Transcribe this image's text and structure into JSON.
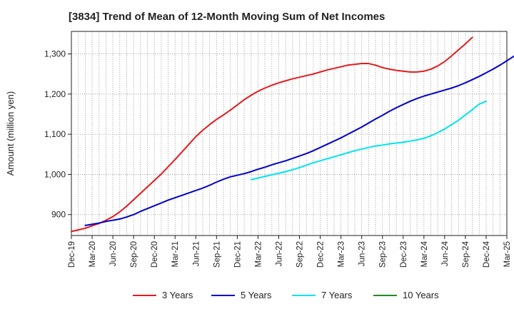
{
  "title": "[3834]  Trend of Mean of 12-Month Moving Sum of Net Incomes",
  "chart_data": {
    "type": "line",
    "title": "[3834]  Trend of Mean of 12-Month Moving Sum of Net Incomes",
    "ylabel": "Amount (million yen)",
    "xlabel": "",
    "ylim": [
      848,
      1356
    ],
    "yticks": [
      900,
      1000,
      1100,
      1200,
      1300
    ],
    "ytick_labels": [
      "900",
      "1,000",
      "1,100",
      "1,200",
      "1,300"
    ],
    "x_start": "Dec-19",
    "x_end": "Mar-25",
    "xtick_labels": [
      "Dec-19",
      "Mar-20",
      "Jun-20",
      "Sep-20",
      "Dec-20",
      "Mar-21",
      "Jun-21",
      "Sep-21",
      "Dec-21",
      "Mar-22",
      "Jun-22",
      "Sep-22",
      "Dec-22",
      "Mar-23",
      "Jun-23",
      "Sep-23",
      "Dec-23",
      "Mar-24",
      "Jun-24",
      "Sep-24",
      "Dec-24",
      "Mar-25"
    ],
    "grid": true,
    "legend_position": "bottom",
    "series": [
      {
        "name": "3 Years",
        "color": "#e41a1c",
        "start": "Dec-19",
        "values": [
          858,
          862,
          866,
          872,
          878,
          886,
          895,
          907,
          921,
          937,
          953,
          969,
          985,
          1001,
          1019,
          1037,
          1056,
          1075,
          1094,
          1110,
          1124,
          1137,
          1148,
          1160,
          1173,
          1186,
          1197,
          1207,
          1215,
          1222,
          1228,
          1233,
          1238,
          1242,
          1246,
          1250,
          1255,
          1260,
          1264,
          1268,
          1272,
          1274,
          1276,
          1276,
          1272,
          1266,
          1262,
          1259,
          1257,
          1255,
          1255,
          1257,
          1262,
          1270,
          1281,
          1295,
          1310,
          1325,
          1341
        ]
      },
      {
        "name": "5 Years",
        "color": "#0000cc",
        "start": "Feb-20",
        "values": [
          873,
          876,
          879,
          883,
          886,
          889,
          894,
          900,
          908,
          915,
          922,
          929,
          936,
          942,
          948,
          954,
          960,
          966,
          973,
          981,
          988,
          994,
          998,
          1002,
          1007,
          1013,
          1018,
          1024,
          1029,
          1034,
          1040,
          1046,
          1052,
          1059,
          1067,
          1075,
          1083,
          1091,
          1100,
          1109,
          1118,
          1128,
          1138,
          1147,
          1157,
          1166,
          1174,
          1182,
          1189,
          1195,
          1200,
          1205,
          1210,
          1215,
          1221,
          1228,
          1236,
          1244,
          1253,
          1262,
          1272,
          1283,
          1294,
          1306
        ]
      },
      {
        "name": "7 Years",
        "color": "#00e5ee",
        "start": "Feb-22",
        "values": [
          987,
          991,
          995,
          999,
          1003,
          1007,
          1012,
          1017,
          1023,
          1029,
          1034,
          1039,
          1044,
          1049,
          1054,
          1059,
          1063,
          1067,
          1071,
          1073,
          1076,
          1078,
          1080,
          1083,
          1086,
          1090,
          1096,
          1104,
          1113,
          1124,
          1135,
          1148,
          1161,
          1175,
          1182
        ]
      },
      {
        "name": "10 Years",
        "color": "#228b22",
        "start": "Feb-22",
        "values": []
      }
    ]
  }
}
